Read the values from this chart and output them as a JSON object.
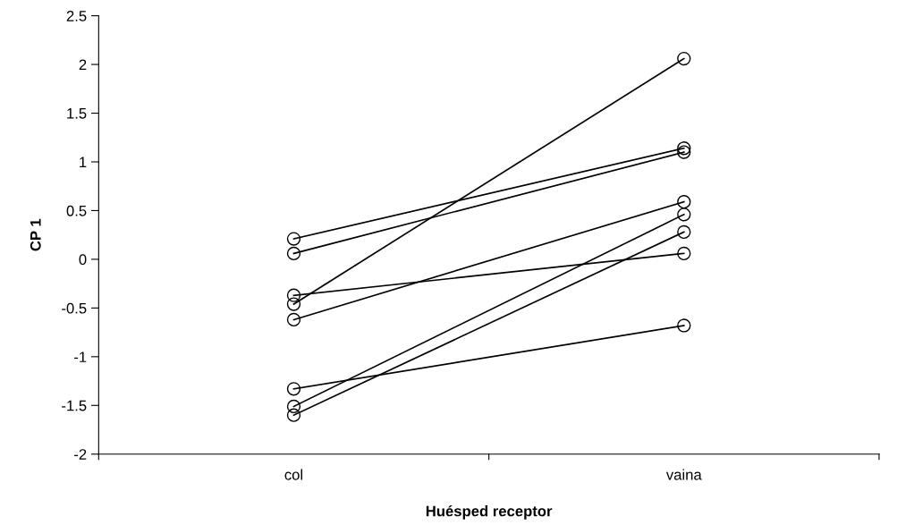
{
  "chart_data": {
    "type": "line",
    "xlabel": "Huésped receptor",
    "ylabel": "CP 1",
    "categories": [
      "col",
      "vaina"
    ],
    "series": [
      {
        "color": "#000000",
        "values": [
          0.21,
          1.14
        ]
      },
      {
        "color": "#000000",
        "values": [
          0.06,
          1.1
        ]
      },
      {
        "color": "#000000",
        "values": [
          -0.37,
          0.06
        ]
      },
      {
        "color": "#000000",
        "values": [
          -0.46,
          2.06
        ]
      },
      {
        "color": "#000000",
        "values": [
          -0.62,
          0.59
        ]
      },
      {
        "color": "#000000",
        "values": [
          -1.33,
          -0.68
        ]
      },
      {
        "color": "#000000",
        "values": [
          -1.51,
          0.46
        ]
      },
      {
        "color": "#000000",
        "values": [
          -1.6,
          0.28
        ]
      }
    ],
    "ylim": [
      -2,
      2.5
    ],
    "yticks": [
      -2,
      -1.5,
      -1,
      -0.5,
      0,
      0.5,
      1,
      1.5,
      2,
      2.5
    ],
    "marker": "circle",
    "line_style": "solid",
    "grid": false,
    "legend": false
  }
}
